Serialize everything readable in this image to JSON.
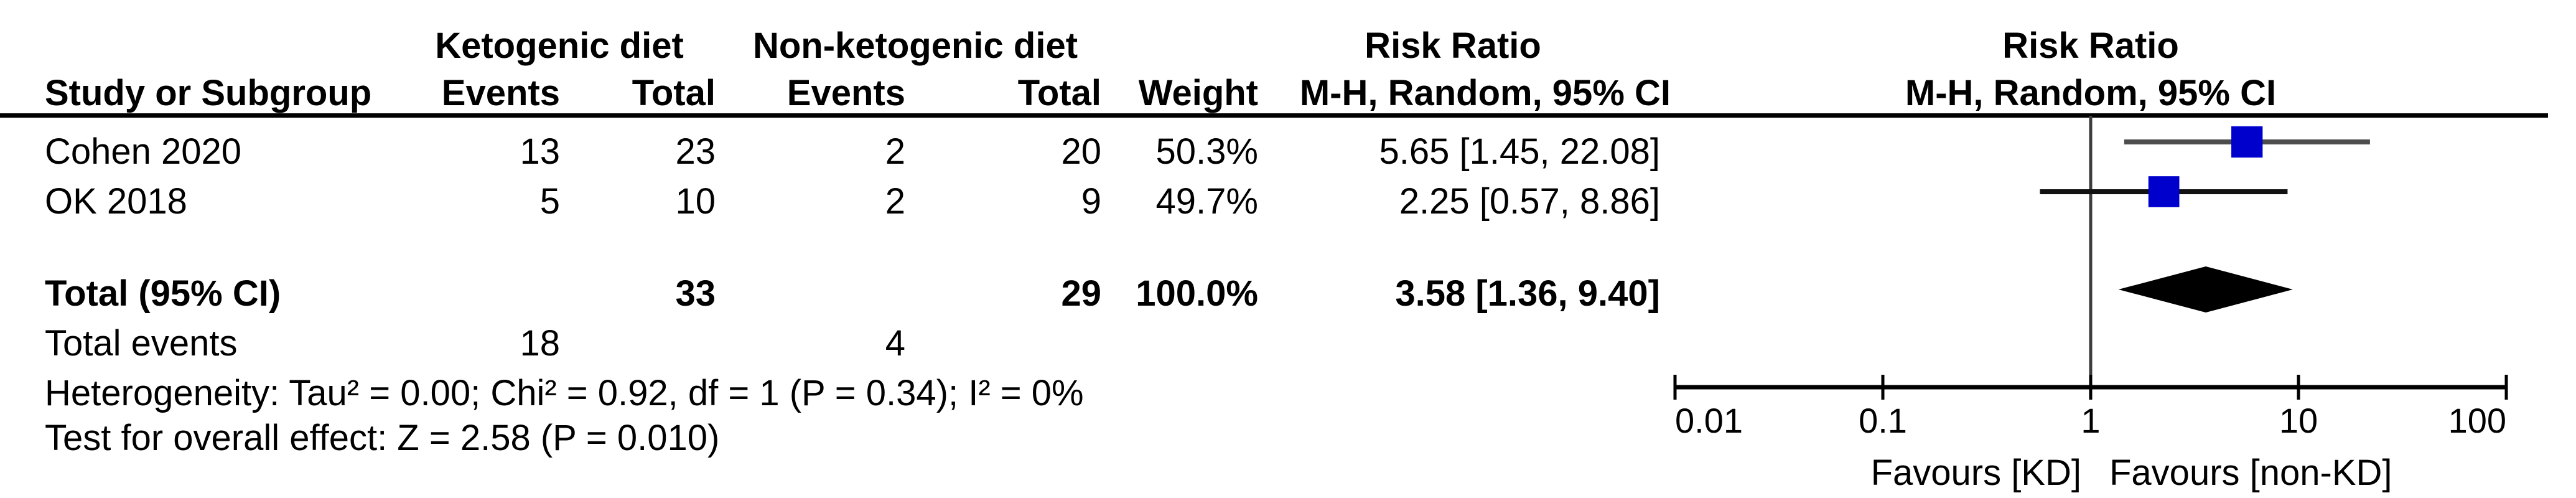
{
  "figure": {
    "group_headers": {
      "experimental": "Ketogenic diet",
      "control": "Non-ketogenic diet",
      "effect": "Risk Ratio",
      "plot_effect": "Risk Ratio"
    },
    "column_headers": {
      "study": "Study or Subgroup",
      "exp_events": "Events",
      "exp_total": "Total",
      "ctrl_events": "Events",
      "ctrl_total": "Total",
      "weight": "Weight",
      "effect_ci": "M-H, Random, 95% CI",
      "plot_effect_ci": "M-H, Random, 95% CI"
    },
    "rows": [
      {
        "study": "Cohen 2020",
        "exp_events": "13",
        "exp_total": "23",
        "ctrl_events": "2",
        "ctrl_total": "20",
        "weight": "50.3%",
        "effect_ci": "5.65 [1.45, 22.08]"
      },
      {
        "study": "OK 2018",
        "exp_events": "5",
        "exp_total": "10",
        "ctrl_events": "2",
        "ctrl_total": "9",
        "weight": "49.7%",
        "effect_ci": "2.25 [0.57, 8.86]"
      }
    ],
    "total_row": {
      "label": "Total (95% CI)",
      "exp_total": "33",
      "ctrl_total": "29",
      "weight": "100.0%",
      "effect_ci": "3.58 [1.36, 9.40]"
    },
    "total_events_row": {
      "label": "Total events",
      "exp_events": "18",
      "ctrl_events": "4"
    },
    "footnotes": {
      "heterogeneity": "Heterogeneity: Tau² = 0.00; Chi² = 0.92, df = 1 (P = 0.34); I² = 0%",
      "overall_effect": "Test for overall effect: Z = 2.58 (P = 0.010)"
    }
  },
  "chart_data": {
    "type": "forest",
    "x_scale": "log10",
    "x_axis": {
      "min": 0.01,
      "max": 100,
      "reference_line": 1,
      "ticks": [
        {
          "value": 0.01,
          "label": "0.01"
        },
        {
          "value": 0.1,
          "label": "0.1"
        },
        {
          "value": 1,
          "label": "1"
        },
        {
          "value": 10,
          "label": "10"
        },
        {
          "value": 100,
          "label": "100"
        }
      ]
    },
    "studies": [
      {
        "name": "Cohen 2020",
        "rr": 5.65,
        "ci_low": 1.45,
        "ci_high": 22.08,
        "weight_pct": 50.3,
        "ci_color": "#4d4d4d"
      },
      {
        "name": "OK 2018",
        "rr": 2.25,
        "ci_low": 0.57,
        "ci_high": 8.86,
        "weight_pct": 49.7,
        "ci_color": "#111111"
      }
    ],
    "pooled": {
      "label": "Total (95% CI)",
      "rr": 3.58,
      "ci_low": 1.36,
      "ci_high": 9.4
    },
    "favours_left": "Favours [KD]",
    "favours_right": "Favours [non-KD]",
    "colors": {
      "marker": "#0000cc",
      "diamond": "#000000",
      "axis": "#000000",
      "reference_line": "#3d3d3d"
    }
  }
}
